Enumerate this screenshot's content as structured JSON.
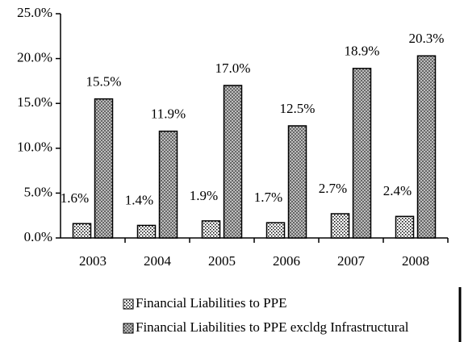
{
  "chart_data": {
    "type": "bar",
    "categories": [
      "2003",
      "2004",
      "2005",
      "2006",
      "2007",
      "2008"
    ],
    "series": [
      {
        "name": "Financial Liabilities to PPE",
        "color": "#000000",
        "pattern": "dots",
        "values": [
          1.6,
          1.4,
          1.9,
          1.7,
          2.7,
          2.4
        ],
        "value_labels": [
          "1.6%",
          "1.4%",
          "1.9%",
          "1.7%",
          "2.7%",
          "2.4%"
        ]
      },
      {
        "name": "Financial Liabilities to PPE excldg Infrastructural",
        "color": "#000000",
        "pattern": "crosshatch",
        "values": [
          15.5,
          11.9,
          17.0,
          12.5,
          18.9,
          20.3
        ],
        "value_labels": [
          "15.5%",
          "11.9%",
          "17.0%",
          "12.5%",
          "18.9%",
          "20.3%"
        ]
      }
    ],
    "ylim": [
      0,
      25
    ],
    "yticks": [
      {
        "value": 0,
        "label": "0.0%"
      },
      {
        "value": 5,
        "label": "5.0%"
      },
      {
        "value": 10,
        "label": "10.0%"
      },
      {
        "value": 15,
        "label": "15.0%"
      },
      {
        "value": 20,
        "label": "20.0%"
      },
      {
        "value": 25,
        "label": "25.0%"
      }
    ],
    "grid": false,
    "legend": "bottom"
  }
}
